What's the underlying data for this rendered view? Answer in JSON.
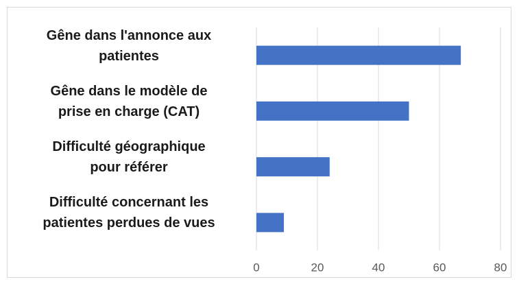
{
  "chart_data": {
    "type": "bar",
    "orientation": "horizontal",
    "categories": [
      "Gêne dans l'annonce  aux\npatientes",
      "Gêne dans le modèle de\nprise en charge (CAT)",
      "Difficulté géographique\npour référer",
      "Difficulté concernant les\npatientes perdues de vues"
    ],
    "values": [
      67,
      50,
      24,
      9
    ],
    "color": "#4472c4",
    "xlim": [
      0,
      80
    ],
    "xticks": [
      0,
      20,
      40,
      60,
      80
    ],
    "grid": true
  }
}
